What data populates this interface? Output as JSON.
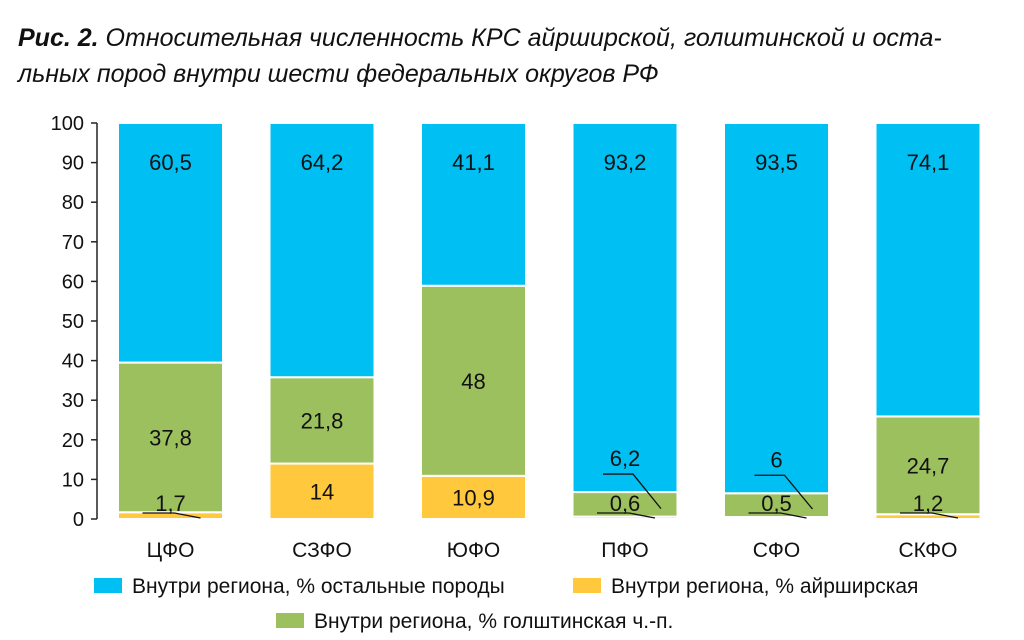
{
  "caption": {
    "label": "Рис. 2.",
    "text": "Относительная численность КРС айрширской, голштинской и оста-льных пород внутри шести федеральных округов РФ"
  },
  "chart_data": {
    "type": "bar",
    "stacked": true,
    "categories": [
      "ЦФО",
      "СЗФО",
      "ЮФО",
      "ПФО",
      "СФО",
      "СКФО"
    ],
    "series": [
      {
        "name": "Внутри региона, % айрширская",
        "color": "#ffc83d",
        "values": [
          1.7,
          14,
          10.9,
          0.6,
          0.5,
          1.2
        ],
        "labels": [
          "1,7",
          "14",
          "10,9",
          "0,6",
          "0,5",
          "1,2"
        ]
      },
      {
        "name": "Внутри региона, % голштинская ч.-п.",
        "color": "#9dc05f",
        "values": [
          37.8,
          21.8,
          48,
          6.2,
          6,
          24.7
        ],
        "labels": [
          "37,8",
          "21,8",
          "48",
          "6,2",
          "6",
          "24,7"
        ]
      },
      {
        "name": "Внутри региона, % остальные породы",
        "color": "#00bff3",
        "values": [
          60.5,
          64.2,
          41.1,
          93.2,
          93.5,
          74.1
        ],
        "labels": [
          "60,5",
          "64,2",
          "41,1",
          "93,2",
          "93,5",
          "74,1"
        ]
      }
    ],
    "ylim": [
      0,
      100
    ],
    "yticks": [
      0,
      10,
      20,
      30,
      40,
      50,
      60,
      70,
      80,
      90,
      100
    ],
    "grid": false,
    "legend_position": "bottom"
  }
}
